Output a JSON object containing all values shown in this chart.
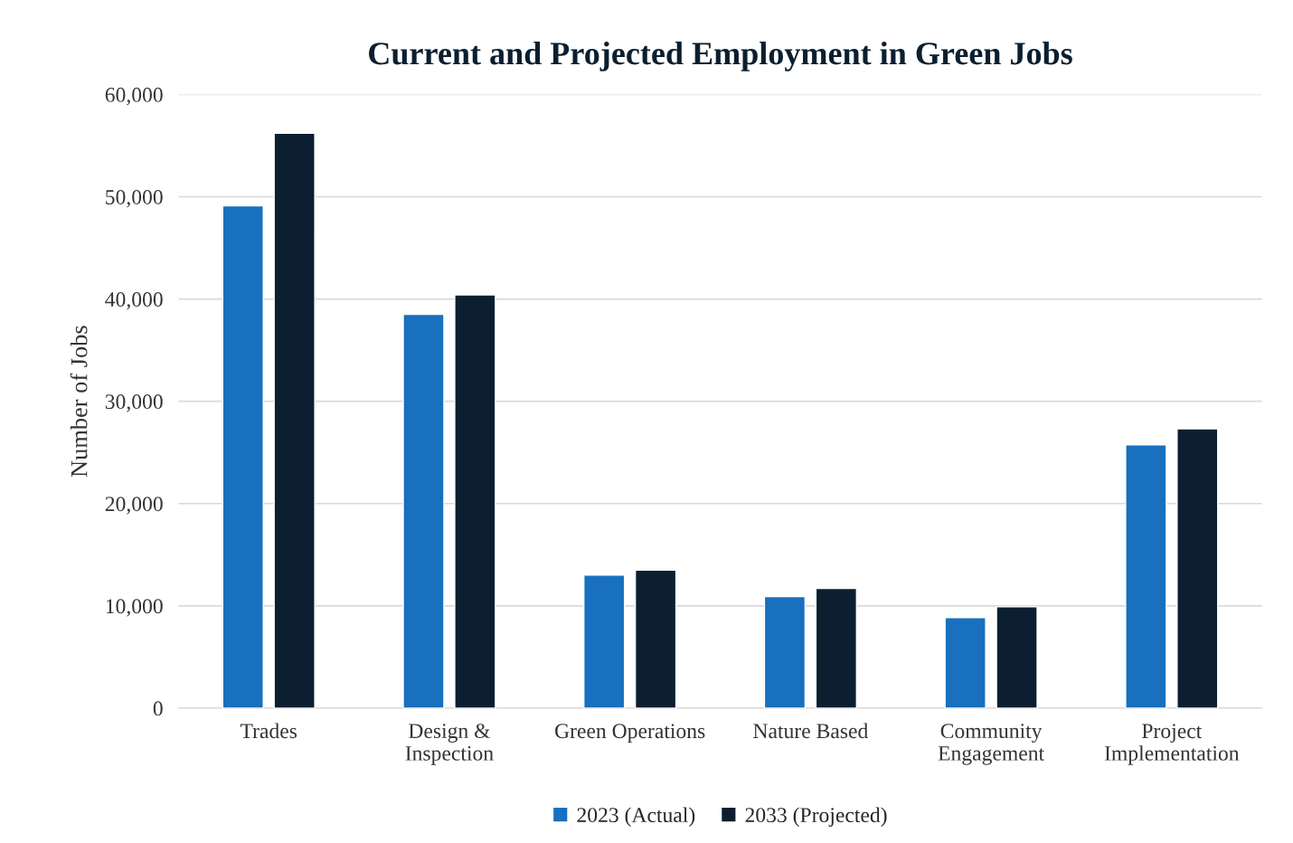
{
  "chart_data": {
    "type": "bar",
    "title": "Current and Projected Employment in Green Jobs",
    "ylabel": "Number of Jobs",
    "categories": [
      "Trades",
      "Design &\nInspection",
      "Green Operations",
      "Nature Based",
      "Community\nEngagement",
      "Project\nImplementation"
    ],
    "series": [
      {
        "name": "2023 (Actual)",
        "color": "#1870be",
        "values": [
          49100,
          38500,
          13000,
          10900,
          8850,
          25750
        ]
      },
      {
        "name": "2033 (Projected)",
        "color": "#0b1f30",
        "values": [
          56200,
          40400,
          13500,
          11700,
          9900,
          27300
        ]
      }
    ],
    "ylim": [
      0,
      60000
    ],
    "yticks": [
      {
        "value": 0,
        "label": "0"
      },
      {
        "value": 10000,
        "label": "10,000"
      },
      {
        "value": 20000,
        "label": "20,000"
      },
      {
        "value": 30000,
        "label": "30,000"
      },
      {
        "value": 40000,
        "label": "40,000"
      },
      {
        "value": 50000,
        "label": "50,000"
      },
      {
        "value": 60000,
        "label": "60,000"
      }
    ],
    "grid": "y",
    "legend": "bottom"
  }
}
